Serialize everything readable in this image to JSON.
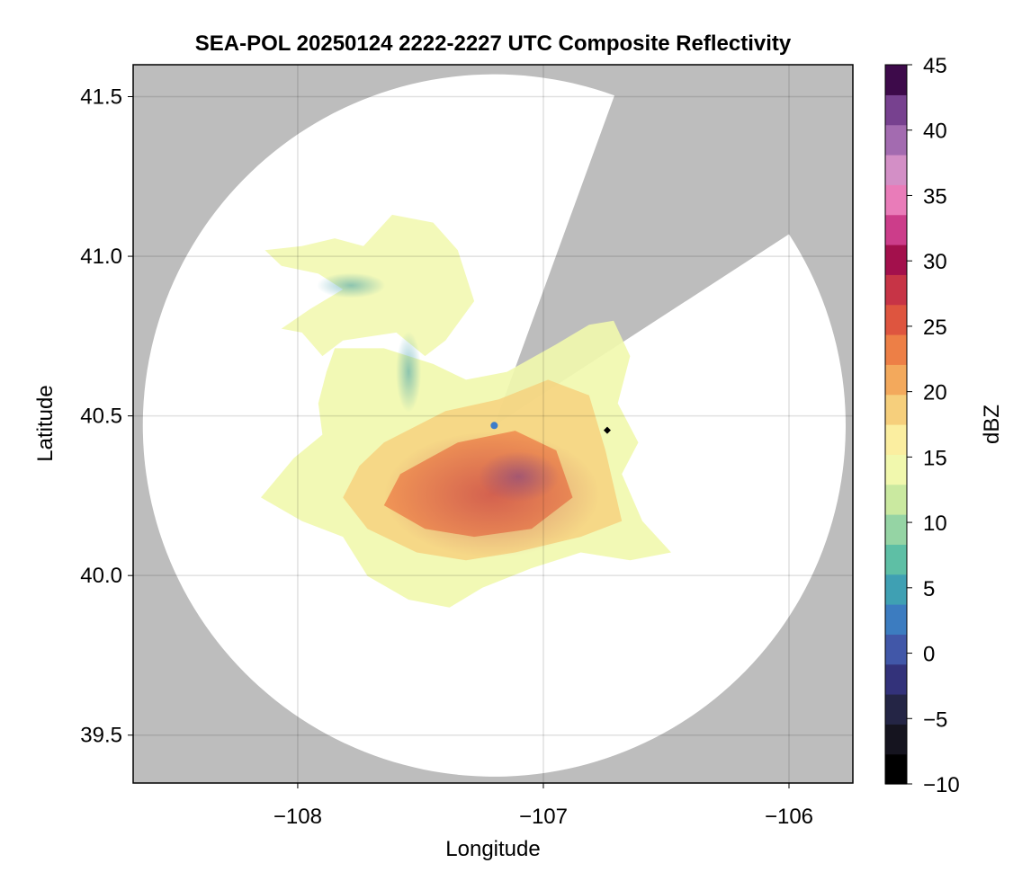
{
  "chart_data": {
    "type": "heatmap",
    "title": "SEA-POL 20250124 2222-2227 UTC Composite Reflectivity",
    "xlabel": "Longitude",
    "ylabel": "Latitude",
    "xlim": [
      -108.67,
      -105.74
    ],
    "ylim": [
      39.35,
      41.6
    ],
    "xticks": [
      -108,
      -107,
      -106
    ],
    "xtick_labels": [
      "−108",
      "−107",
      "−106"
    ],
    "yticks": [
      39.5,
      40.0,
      40.5,
      41.0,
      41.5
    ],
    "ytick_labels": [
      "39.5",
      "40.0",
      "40.5",
      "41.0",
      "41.5"
    ],
    "grid": true,
    "background_color": "#bdbdbd",
    "radar": {
      "center": [
        -107.2,
        40.47
      ],
      "range_lat_deg": 1.1,
      "blanked_sector_bearing_deg": [
        20,
        57
      ],
      "site_marker_color": "#3d7cc9"
    },
    "reference_point": {
      "lon": -106.74,
      "lat": 40.455,
      "marker": "diamond",
      "color": "#000000"
    },
    "echo_region": {
      "lon_range": [
        -108.15,
        -106.48
      ],
      "lat_range": [
        39.9,
        41.13
      ],
      "max_dbz_lon": -107.1,
      "max_dbz_lat": 40.31,
      "max_dbz": 38
    },
    "colorbar": {
      "label": "dBZ",
      "min": -10,
      "max": 45,
      "ticks": [
        45,
        40,
        35,
        30,
        25,
        20,
        15,
        10,
        5,
        0,
        -5,
        -10
      ],
      "tick_labels": [
        "45",
        "40",
        "35",
        "30",
        "25",
        "20",
        "15",
        "10",
        "5",
        "0",
        "−5",
        "−10"
      ],
      "colormap": "Spectral (reversed, extended)",
      "colors": [
        "#000000",
        "#15141f",
        "#242545",
        "#33327a",
        "#4157a8",
        "#3c7cc0",
        "#3fa0b3",
        "#5ebfa5",
        "#95d4a4",
        "#cae9a0",
        "#f1f8ad",
        "#fbeea0",
        "#f6cf7c",
        "#f3a95c",
        "#ed7f46",
        "#de553f",
        "#c73446",
        "#a3104c",
        "#cc3d8a",
        "#e97cb9",
        "#d38fc6",
        "#a36bb0",
        "#77418f",
        "#3d0a4a"
      ]
    }
  }
}
